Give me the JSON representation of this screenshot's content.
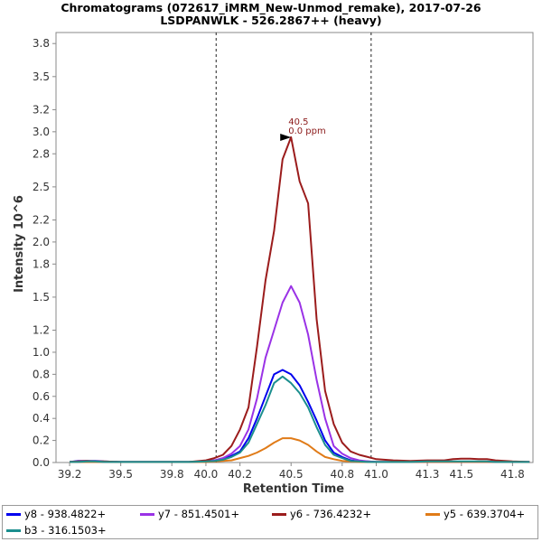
{
  "chart_data": {
    "type": "line",
    "title": "Chromatograms (072617_iMRM_New-Unmod_remake), 2017-07-26",
    "subtitle": "LSDPANWLK - 526.2867++ (heavy)",
    "xlabel": "Retention Time",
    "ylabel": "Intensity 10^6",
    "xlim": [
      39.12,
      41.92
    ],
    "ylim": [
      0,
      3.9
    ],
    "x_ticks": [
      "39.2",
      "39.5",
      "39.8",
      "40.0",
      "40.2",
      "40.5",
      "40.8",
      "41.0",
      "41.3",
      "41.5",
      "41.8"
    ],
    "y_ticks": [
      "0.0",
      "0.2",
      "0.4",
      "0.6",
      "0.8",
      "1.0",
      "1.2",
      "1.5",
      "1.8",
      "2.0",
      "2.2",
      "2.5",
      "2.8",
      "3.0",
      "3.2",
      "3.5",
      "3.8"
    ],
    "grid": false,
    "legend_position": "bottom",
    "vertical_markers": [
      40.06,
      40.97
    ],
    "annotation": {
      "x": 40.5,
      "y": 2.95,
      "line1": "40.5",
      "line2": "0.0 ppm",
      "color": "#8b1a1a"
    },
    "x": [
      39.2,
      39.25,
      39.3,
      39.35,
      39.4,
      39.5,
      39.6,
      39.7,
      39.8,
      39.9,
      40.0,
      40.05,
      40.1,
      40.15,
      40.2,
      40.25,
      40.3,
      40.35,
      40.4,
      40.45,
      40.5,
      40.55,
      40.6,
      40.65,
      40.7,
      40.75,
      40.8,
      40.85,
      40.9,
      40.95,
      41.0,
      41.1,
      41.2,
      41.3,
      41.4,
      41.45,
      41.5,
      41.55,
      41.6,
      41.65,
      41.7,
      41.8,
      41.9
    ],
    "series": [
      {
        "name": "y8 - 938.4822+",
        "color": "#0000ee",
        "values": [
          0.005,
          0.015,
          0.015,
          0.015,
          0.01,
          0.005,
          0.005,
          0.005,
          0.005,
          0.005,
          0.01,
          0.02,
          0.03,
          0.06,
          0.1,
          0.22,
          0.4,
          0.6,
          0.8,
          0.84,
          0.8,
          0.7,
          0.55,
          0.38,
          0.2,
          0.09,
          0.05,
          0.02,
          0.01,
          0.01,
          0.005,
          0.005,
          0.005,
          0.005,
          0.005,
          0.005,
          0.005,
          0.005,
          0.005,
          0.005,
          0.005,
          0.005,
          0.005
        ]
      },
      {
        "name": "y7 - 851.4501+",
        "color": "#9a32e6",
        "values": [
          0.005,
          0.01,
          0.01,
          0.01,
          0.005,
          0.005,
          0.005,
          0.005,
          0.005,
          0.005,
          0.01,
          0.02,
          0.04,
          0.08,
          0.15,
          0.3,
          0.58,
          0.95,
          1.2,
          1.45,
          1.6,
          1.45,
          1.16,
          0.75,
          0.4,
          0.15,
          0.08,
          0.04,
          0.02,
          0.01,
          0.005,
          0.005,
          0.005,
          0.005,
          0.005,
          0.005,
          0.005,
          0.005,
          0.005,
          0.005,
          0.005,
          0.005,
          0.005
        ]
      },
      {
        "name": "y6 - 736.4232+",
        "color": "#9b1c1c",
        "values": [
          0.005,
          0.01,
          0.015,
          0.01,
          0.01,
          0.005,
          0.005,
          0.005,
          0.005,
          0.005,
          0.02,
          0.04,
          0.07,
          0.15,
          0.3,
          0.5,
          1.05,
          1.65,
          2.1,
          2.75,
          2.95,
          2.55,
          2.35,
          1.3,
          0.65,
          0.35,
          0.18,
          0.1,
          0.07,
          0.05,
          0.03,
          0.02,
          0.015,
          0.02,
          0.02,
          0.03,
          0.035,
          0.035,
          0.03,
          0.03,
          0.02,
          0.01,
          0.005
        ]
      },
      {
        "name": "y5 - 639.3704+",
        "color": "#e07b18",
        "values": [
          0.005,
          0.005,
          0.005,
          0.005,
          0.005,
          0.005,
          0.005,
          0.005,
          0.005,
          0.005,
          0.005,
          0.01,
          0.015,
          0.02,
          0.04,
          0.06,
          0.09,
          0.13,
          0.18,
          0.22,
          0.22,
          0.2,
          0.16,
          0.1,
          0.05,
          0.03,
          0.015,
          0.01,
          0.005,
          0.005,
          0.005,
          0.005,
          0.005,
          0.005,
          0.005,
          0.005,
          0.005,
          0.005,
          0.005,
          0.005,
          0.005,
          0.005,
          0.005
        ]
      },
      {
        "name": "b3 - 316.1503+",
        "color": "#1b8e8e",
        "values": [
          0.005,
          0.005,
          0.01,
          0.01,
          0.005,
          0.005,
          0.005,
          0.005,
          0.005,
          0.005,
          0.01,
          0.015,
          0.025,
          0.05,
          0.09,
          0.18,
          0.35,
          0.52,
          0.72,
          0.78,
          0.72,
          0.63,
          0.5,
          0.32,
          0.16,
          0.07,
          0.04,
          0.015,
          0.01,
          0.005,
          0.005,
          0.005,
          0.005,
          0.01,
          0.01,
          0.01,
          0.01,
          0.01,
          0.01,
          0.01,
          0.005,
          0.005,
          0.005
        ]
      }
    ]
  }
}
